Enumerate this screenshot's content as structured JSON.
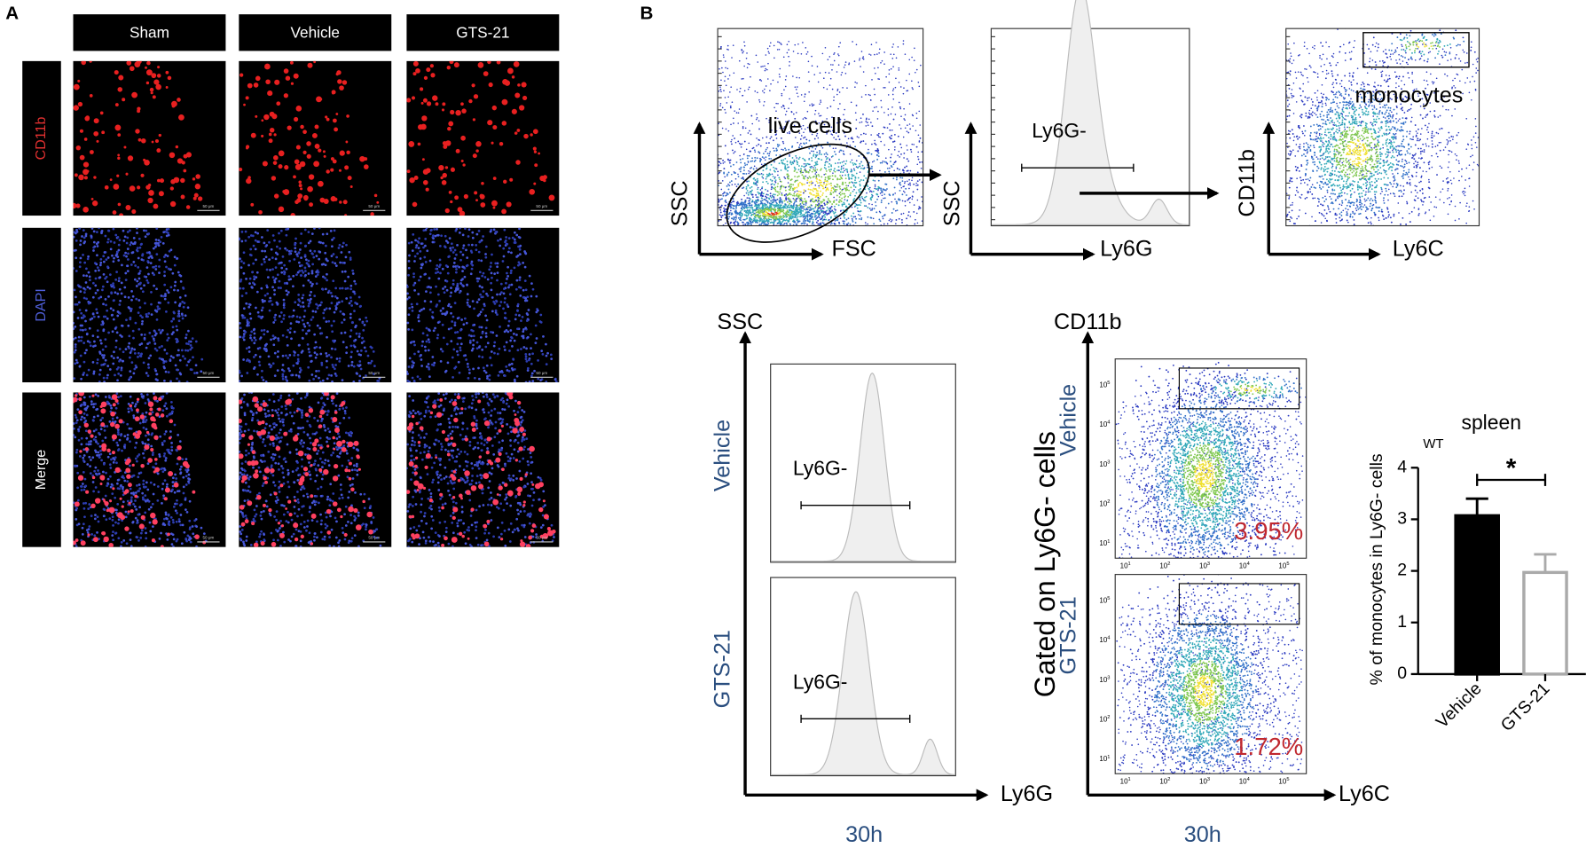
{
  "panel_a": {
    "label": "A",
    "columns": [
      "Sham",
      "Vehicle",
      "GTS-21"
    ],
    "rows": [
      "CD11b",
      "DAPI",
      "Merge"
    ],
    "scale_bar": "50 μm"
  },
  "panel_b": {
    "label": "B",
    "gating": [
      {
        "x_label": "FSC",
        "y_label": "SSC",
        "gate": "live cells"
      },
      {
        "x_label": "Ly6G",
        "y_label": "SSC",
        "gate": "Ly6G-"
      },
      {
        "x_label": "Ly6C",
        "y_label": "CD11b",
        "gate": "monocytes"
      }
    ],
    "histograms": {
      "y_label": "SSC",
      "x_label": "Ly6G",
      "groups": [
        "Vehicle",
        "GTS-21"
      ],
      "gate": "Ly6G-",
      "time": "30h"
    },
    "scatters": {
      "y_label": "CD11b",
      "x_label": "Ly6C",
      "side_label": "Gated on Ly6G- cells",
      "groups": [
        "Vehicle",
        "GTS-21"
      ],
      "percents": [
        "3.95%",
        "1.72%"
      ],
      "tick_base": "10",
      "tick_exponents": [
        1,
        2,
        3,
        4,
        5
      ],
      "time": "30h"
    }
  },
  "chart_data": {
    "type": "bar",
    "title": "spleen",
    "annotation": "WT",
    "categories": [
      "Vehicle",
      "GTS-21"
    ],
    "values": [
      3.07,
      1.97
    ],
    "errors": [
      0.33,
      0.35
    ],
    "colors": [
      "#000000",
      "#ffffff"
    ],
    "edge_colors": [
      "#000000",
      "#aaaaaa"
    ],
    "significance": "*",
    "y_label": "% of monocytes in Ly6G- cells",
    "ylim": [
      0,
      4
    ],
    "yticks": [
      0,
      1,
      2,
      3,
      4
    ]
  }
}
